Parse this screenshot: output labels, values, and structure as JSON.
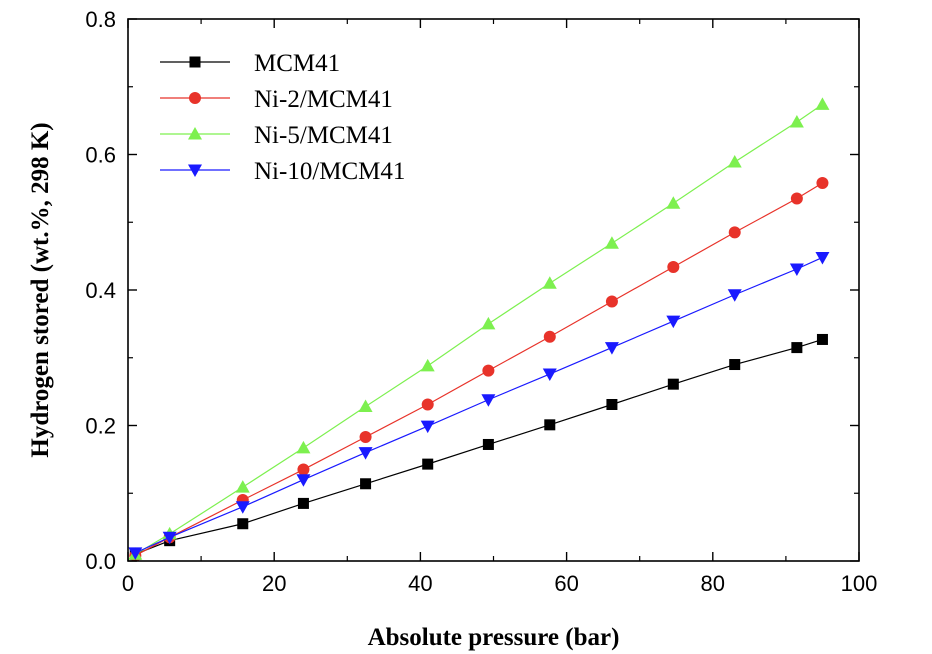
{
  "chart_data": {
    "type": "line",
    "title": "",
    "xlabel": "Absolute pressure (bar)",
    "ylabel": "Hydrogen stored (wt.%, 298 K)",
    "xlim": [
      0,
      100
    ],
    "ylim": [
      0,
      0.8
    ],
    "xticks": [
      0,
      20,
      40,
      60,
      80,
      100
    ],
    "yticks": [
      0.0,
      0.2,
      0.4,
      0.6,
      0.8
    ],
    "xtick_labels": [
      "0",
      "20",
      "40",
      "60",
      "80",
      "100"
    ],
    "ytick_labels": [
      "0.0",
      "0.2",
      "0.4",
      "0.6",
      "0.8"
    ],
    "grid": false,
    "legend_position": "top-left",
    "series": [
      {
        "name": "MCM41",
        "color": "#000000",
        "marker": "square",
        "x": [
          1,
          5.7,
          15.7,
          24,
          32.5,
          41,
          49.3,
          57.7,
          66.2,
          74.6,
          83,
          91.5,
          95
        ],
        "y": [
          0.01,
          0.03,
          0.055,
          0.085,
          0.114,
          0.143,
          0.172,
          0.201,
          0.231,
          0.261,
          0.29,
          0.315,
          0.327
        ]
      },
      {
        "name": "Ni-2/MCM41",
        "color": "#e8332a",
        "marker": "circle",
        "x": [
          1,
          5.7,
          15.7,
          24,
          32.5,
          41,
          49.3,
          57.7,
          66.2,
          74.6,
          83,
          91.5,
          95
        ],
        "y": [
          0.008,
          0.035,
          0.09,
          0.135,
          0.183,
          0.231,
          0.281,
          0.331,
          0.383,
          0.434,
          0.485,
          0.535,
          0.558
        ]
      },
      {
        "name": "Ni-5/MCM41",
        "color": "#7df04f",
        "marker": "triangle-up",
        "x": [
          1,
          5.7,
          15.7,
          24,
          32.5,
          41,
          49.3,
          57.7,
          66.2,
          74.6,
          83,
          91.5,
          95
        ],
        "y": [
          0.01,
          0.04,
          0.109,
          0.167,
          0.228,
          0.288,
          0.35,
          0.41,
          0.469,
          0.528,
          0.589,
          0.648,
          0.674
        ]
      },
      {
        "name": "Ni-10/MCM41",
        "color": "#1a1aff",
        "marker": "triangle-down",
        "x": [
          1,
          5.7,
          15.7,
          24,
          32.5,
          41,
          49.3,
          57.7,
          66.2,
          74.6,
          83,
          91.5,
          95
        ],
        "y": [
          0.012,
          0.035,
          0.08,
          0.12,
          0.16,
          0.199,
          0.238,
          0.276,
          0.315,
          0.354,
          0.393,
          0.431,
          0.448
        ]
      }
    ]
  }
}
